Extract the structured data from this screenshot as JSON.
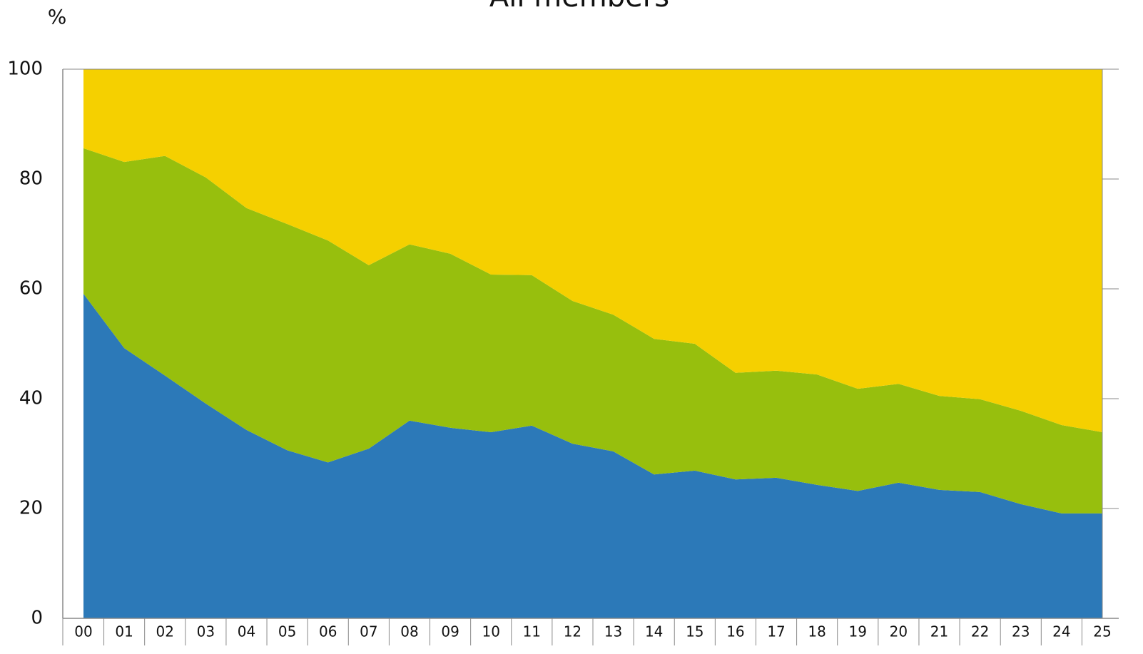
{
  "chart_data": {
    "type": "stacked_area",
    "title": "All members",
    "y_label": "%",
    "categories": [
      "00",
      "01",
      "02",
      "03",
      "04",
      "05",
      "06",
      "07",
      "08",
      "09",
      "10",
      "11",
      "12",
      "13",
      "14",
      "15",
      "16",
      "17",
      "18",
      "19",
      "20",
      "21",
      "22",
      "23",
      "24",
      "25"
    ],
    "series": [
      {
        "color": "#2c79b8",
        "values": [
          59.1,
          49.2,
          44.2,
          39.1,
          34.3,
          30.6,
          28.4,
          30.9,
          36.0,
          34.7,
          33.9,
          35.1,
          31.8,
          30.4,
          26.2,
          26.9,
          25.3,
          25.6,
          24.3,
          23.2,
          24.7,
          23.4,
          23.0,
          20.8,
          19.1,
          19.1
        ]
      },
      {
        "color": "#97bf0d",
        "values": [
          26.5,
          33.9,
          40.0,
          41.2,
          40.4,
          41.2,
          40.4,
          33.4,
          32.1,
          31.7,
          28.7,
          27.4,
          26.0,
          24.9,
          24.7,
          23.1,
          19.4,
          19.5,
          20.1,
          18.6,
          18.0,
          17.1,
          16.9,
          17.0,
          16.1,
          14.8
        ]
      },
      {
        "color": "#f5d000",
        "values": [
          14.4,
          16.9,
          15.8,
          19.7,
          25.3,
          28.2,
          31.2,
          35.7,
          31.9,
          33.6,
          37.4,
          37.5,
          42.2,
          44.7,
          49.1,
          50.0,
          55.3,
          54.9,
          55.6,
          58.2,
          57.3,
          59.5,
          60.1,
          62.2,
          64.8,
          66.1
        ]
      }
    ],
    "ylim": [
      0,
      100
    ],
    "yticks": [
      0,
      20,
      40,
      60,
      80,
      100
    ]
  }
}
